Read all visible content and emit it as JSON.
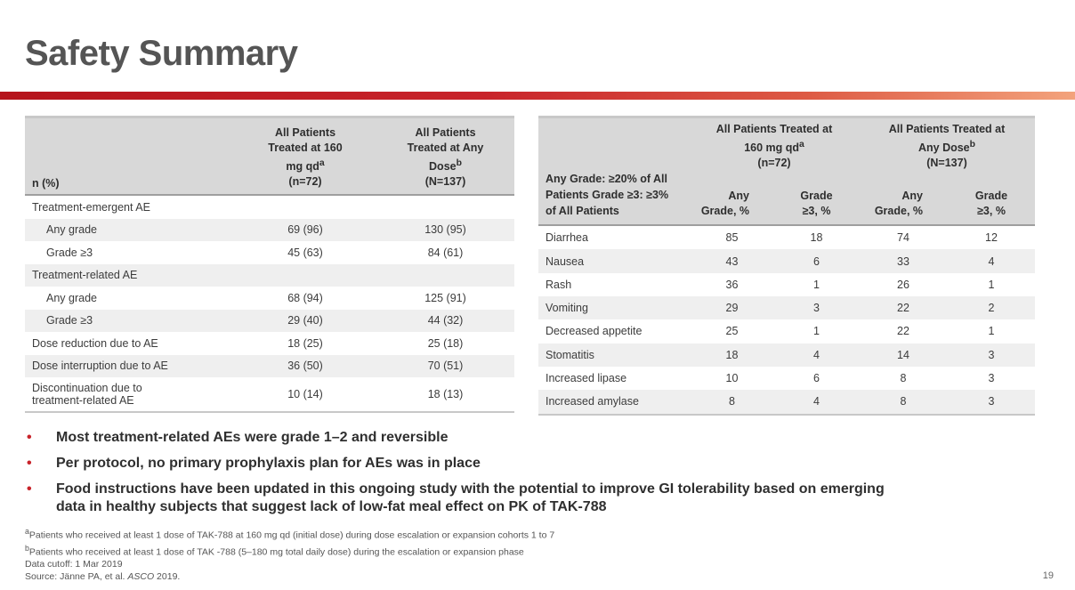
{
  "title": "Safety Summary",
  "left_table": {
    "headers": {
      "label": "n (%)",
      "col1": "All Patients Treated at 160 mg qd",
      "col1_sup": "a",
      "col1_n": "(n=72)",
      "col2": "All Patients Treated at Any Dose",
      "col2_sup": "b",
      "col2_n": "(N=137)"
    },
    "rows": [
      {
        "label": "Treatment-emergent AE",
        "v1": "",
        "v2": ""
      },
      {
        "label": "Any grade",
        "v1": "69 (96)",
        "v2": "130 (95)"
      },
      {
        "label": "Grade ≥3",
        "v1": "45 (63)",
        "v2": "84 (61)"
      },
      {
        "label": "Treatment-related AE",
        "v1": "",
        "v2": ""
      },
      {
        "label": "Any grade",
        "v1": "68 (94)",
        "v2": "125 (91)"
      },
      {
        "label": "Grade ≥3",
        "v1": "29 (40)",
        "v2": "44 (32)"
      },
      {
        "label": "Dose reduction due to AE",
        "v1": "18 (25)",
        "v2": "25 (18)"
      },
      {
        "label": "Dose interruption due to AE",
        "v1": "36 (50)",
        "v2": "70 (51)"
      },
      {
        "label": "Discontinuation due to treatment-related AE",
        "v1": "10 (14)",
        "v2": "18 (13)"
      }
    ]
  },
  "right_table": {
    "headers": {
      "label": "Any Grade: ≥20% of All Patients Grade ≥3: ≥3% of All Patients",
      "group1": "All Patients Treated at 160 mg qd",
      "group1_sup": "a",
      "group1_n": "(n=72)",
      "group2": "All Patients Treated at Any Dose",
      "group2_sup": "b",
      "group2_n": "(N=137)",
      "any": "Any Grade, %",
      "g3": "Grade ≥3, %"
    },
    "rows": [
      {
        "label": "Diarrhea",
        "a1": "85",
        "g1": "18",
        "a2": "74",
        "g2": "12"
      },
      {
        "label": "Nausea",
        "a1": "43",
        "g1": "6",
        "a2": "33",
        "g2": "4"
      },
      {
        "label": "Rash",
        "a1": "36",
        "g1": "1",
        "a2": "26",
        "g2": "1"
      },
      {
        "label": "Vomiting",
        "a1": "29",
        "g1": "3",
        "a2": "22",
        "g2": "2"
      },
      {
        "label": "Decreased appetite",
        "a1": "25",
        "g1": "1",
        "a2": "22",
        "g2": "1"
      },
      {
        "label": "Stomatitis",
        "a1": "18",
        "g1": "4",
        "a2": "14",
        "g2": "3"
      },
      {
        "label": "Increased lipase",
        "a1": "10",
        "g1": "6",
        "a2": "8",
        "g2": "3"
      },
      {
        "label": "Increased amylase",
        "a1": "8",
        "g1": "4",
        "a2": "8",
        "g2": "3"
      }
    ]
  },
  "bullets": [
    "Most treatment-related AEs were grade 1–2 and reversible",
    "Per protocol, no primary prophylaxis plan for AEs was in place",
    "Food instructions have been updated in this ongoing study with the potential to improve GI tolerability based on emerging data in healthy subjects that suggest lack of low-fat meal effect on PK of TAK-788"
  ],
  "bullet_marker": "•",
  "footnotes": {
    "a_sup": "a",
    "a": "Patients who received at least 1 dose of TAK-788 at 160 mg qd (initial dose) during dose escalation or expansion cohorts 1 to 7",
    "b_sup": "b",
    "b": "Patients who received at least 1 dose of TAK -788 (5–180 mg total daily dose) during the escalation or expansion phase",
    "cutoff": "Data cutoff: 1 Mar 2019",
    "source_prefix": "Source: Jänne PA, et al. ",
    "source_journal": "ASCO",
    "source_suffix": " 2019."
  },
  "page_number": "19",
  "colors": {
    "accent": "#c8232a",
    "title": "#555555",
    "header_bg": "#d8d8d8",
    "row_shade": "#efefef"
  }
}
